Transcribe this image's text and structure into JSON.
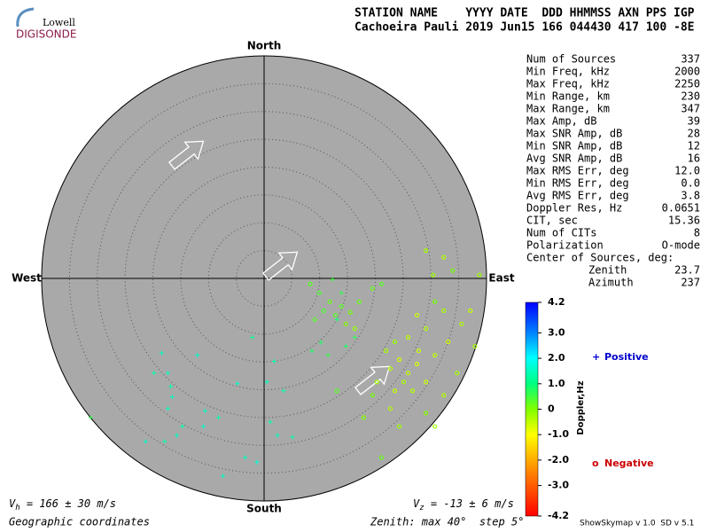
{
  "header": {
    "logo_top": "Lowell",
    "logo_bottom": "DIGISONDE",
    "line1": "STATION NAME    YYYY DATE  DDD HHMMSS AXN PPS IGP",
    "line2": "Cachoeira Pauli 2019 Jun15 166 044430 417 100 -8E"
  },
  "stats": {
    "rows": [
      [
        "Num of Sources",
        "337"
      ],
      [
        "Min Freq, kHz",
        "2000"
      ],
      [
        "Max Freq, kHz",
        "2250"
      ],
      [
        "Min Range, km",
        "230"
      ],
      [
        "Max Range, km",
        "347"
      ],
      [
        "Max Amp, dB",
        "39"
      ],
      [
        "Max SNR Amp, dB",
        "28"
      ],
      [
        "Min SNR Amp, dB",
        "12"
      ],
      [
        "Avg SNR Amp, dB",
        "16"
      ],
      [
        "Max RMS Err, deg",
        "12.0"
      ],
      [
        "Min RMS Err, deg",
        "0.0"
      ],
      [
        "Avg RMS Err, deg",
        "3.8"
      ],
      [
        "Doppler Res, Hz",
        "0.0651"
      ],
      [
        "CIT, sec",
        "15.36"
      ],
      [
        "Num of CITs",
        "8"
      ],
      [
        "Polarization",
        "O-mode"
      ]
    ],
    "center_title": "Center of Sources, deg:",
    "center_rows": [
      [
        "Zenith",
        "23.7"
      ],
      [
        "Azimuth",
        "237"
      ]
    ]
  },
  "skymap": {
    "north": "North",
    "south": "South",
    "west": "West",
    "east": "East",
    "zenith_max": 40,
    "ring_step": 5,
    "positive": {
      "name": "Positive",
      "marker_color": "#0000cc",
      "x": [
        -18.4,
        -12.0,
        -19.8,
        -17.3,
        -16.8,
        -16.5,
        -17.3,
        -4.8,
        0.5,
        1.8,
        3.5,
        -10.6,
        -8.2,
        -10.9,
        -14.7,
        -15.7,
        -17.9,
        -21.3,
        -3.4,
        -1.3,
        1.1,
        2.4,
        5.1,
        -7.4,
        -2.1,
        8.6,
        11.5,
        14.7,
        13.1,
        16.3,
        10.2,
        12.3,
        13.9,
        -31.2
      ],
      "y": [
        -13.4,
        -13.8,
        -17.0,
        -17.0,
        -19.4,
        -21.3,
        -23.4,
        -18.9,
        -18.6,
        -14.9,
        -20.2,
        -23.8,
        -25.0,
        -26.6,
        -26.6,
        -28.2,
        -29.3,
        -29.3,
        -32.2,
        -33.0,
        -25.8,
        -28.2,
        -28.5,
        -35.5,
        -10.6,
        -13.0,
        -13.8,
        -12.2,
        -7.4,
        -10.6,
        -11.5,
        -0.2,
        -2.6,
        -25.0
      ],
      "doppler": [
        1.5,
        1.6,
        1.4,
        1.5,
        1.4,
        1.5,
        1.5,
        1.6,
        1.5,
        1.3,
        1.4,
        1.5,
        1.4,
        1.6,
        1.4,
        1.5,
        1.4,
        1.6,
        1.5,
        1.7,
        1.4,
        1.5,
        1.4,
        1.5,
        1.2,
        0.8,
        0.6,
        0.8,
        0.9,
        0.7,
        0.8,
        0.5,
        0.6,
        0.6
      ]
    },
    "negative": {
      "name": "Negative",
      "marker_color": "#cc0000",
      "x": [
        8.3,
        9.9,
        11.8,
        13.9,
        15.5,
        17.1,
        12.8,
        14.7,
        16.3,
        10.7,
        9.1,
        19.5,
        21.1,
        29.1,
        32.3,
        33.9,
        30.4,
        38.7,
        37.1,
        35.5,
        32.3,
        30.7,
        27.5,
        29.1,
        25.9,
        23.5,
        21.9,
        24.3,
        22.7,
        25.9,
        27.5,
        25.1,
        23.5,
        26.7,
        29.1,
        30.7,
        33.1,
        34.7,
        32.3,
        29.1,
        30.7,
        20.3,
        19.5,
        22.7,
        21.1,
        13.1,
        17.9,
        24.3,
        37.9,
        27.8
      ],
      "y": [
        -1.0,
        -2.6,
        -4.2,
        -5.0,
        -6.1,
        -4.2,
        -6.6,
        -8.2,
        -9.0,
        -5.8,
        -7.4,
        -1.8,
        -1.0,
        5.0,
        3.8,
        1.4,
        0.6,
        0.6,
        -5.8,
        -8.2,
        -5.8,
        -4.2,
        -6.6,
        -9.0,
        -10.6,
        -11.4,
        -13.0,
        -14.6,
        -16.2,
        -17.0,
        -15.4,
        -18.6,
        -20.2,
        -20.2,
        -18.6,
        -13.8,
        -11.4,
        -17.0,
        -21.0,
        -24.2,
        -26.6,
        -18.6,
        -21.0,
        -23.4,
        -32.2,
        -20.2,
        -25.0,
        -26.6,
        -12.2,
        -13.0
      ],
      "doppler": [
        0.3,
        0.4,
        0.2,
        0.3,
        0.1,
        0.2,
        0.3,
        0.0,
        -0.2,
        0.4,
        0.3,
        0.2,
        0.3,
        -0.3,
        -0.4,
        0.1,
        -0.2,
        -0.2,
        -0.5,
        -0.4,
        -0.3,
        0.1,
        -0.6,
        -0.4,
        -0.5,
        -0.2,
        -0.3,
        -0.6,
        -0.4,
        -0.5,
        -0.7,
        -0.3,
        -0.5,
        -0.4,
        -0.6,
        -0.5,
        -0.6,
        -0.3,
        -0.4,
        0.0,
        -0.2,
        -0.3,
        0.1,
        -0.4,
        0.2,
        0.3,
        0.0,
        -0.2,
        -0.3,
        -0.6
      ]
    }
  },
  "colorbar": {
    "label": "Doppler,Hz",
    "ticks": [
      4.2,
      {
        "value": 3,
        "label": "3.0"
      },
      {
        "value": 2,
        "label": "2.0"
      },
      {
        "value": 1,
        "label": "1.0"
      },
      0,
      {
        "value": -1,
        "label": "-1.0"
      },
      {
        "value": -2,
        "label": "-2.0"
      },
      {
        "value": -3,
        "label": "-3.0"
      },
      -4.2
    ]
  },
  "legend": {
    "positive_symbol": "+",
    "positive": "Positive",
    "negative_symbol": "o",
    "negative": "Negative"
  },
  "footer": {
    "vh_symbol": "V",
    "vh_sub": "h",
    "vh_text": " = 166 ± 30 m/s",
    "vz_symbol": "V",
    "vz_sub": "z",
    "vz_text": " = -13 ± 6 m/s",
    "coords": "Geographic coordinates",
    "zenith": "Zenith: max 40°  step 5°",
    "version": "ShowSkymap v 1.0  SD v 5.1"
  }
}
